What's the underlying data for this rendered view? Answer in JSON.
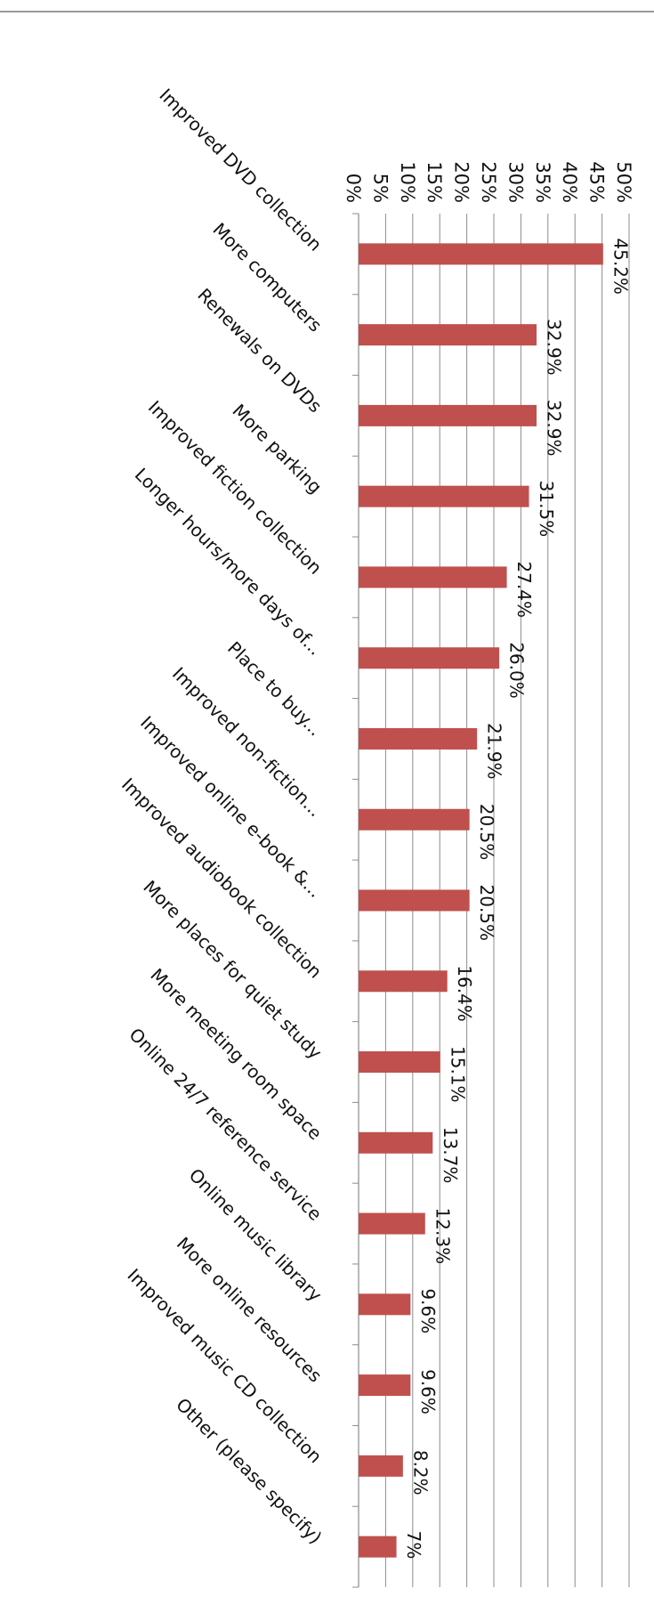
{
  "chart_data": {
    "type": "bar",
    "orientation": "horizontal",
    "categories": [
      "Improved DVD collection",
      "More computers",
      "Renewals on DVDs",
      "More parking",
      "Improved fiction collection",
      "Longer hours/more days of...",
      "Place to buy...",
      "Improved non-fiction...",
      "Improved online e-book &...",
      "Improved audiobook collection",
      "More places for quiet study",
      "More meeting room space",
      "Online 24/7 reference service",
      "Online music library",
      "More online resources",
      "Improved music CD collection",
      "Other (please specify)"
    ],
    "values": [
      45.2,
      32.9,
      32.9,
      31.5,
      27.4,
      26.0,
      21.9,
      20.5,
      20.5,
      16.4,
      15.1,
      13.7,
      12.3,
      9.6,
      9.6,
      8.2,
      7
    ],
    "data_labels": [
      "45.2%",
      "32.9%",
      "32.9%",
      "31.5%",
      "27.4%",
      "26.0%",
      "21.9%",
      "20.5%",
      "20.5%",
      "16.4%",
      "15.1%",
      "13.7%",
      "12.3%",
      "9.6%",
      "9.6%",
      "8.2%",
      "7%"
    ],
    "ticks": [
      0,
      5,
      10,
      15,
      20,
      25,
      30,
      35,
      40,
      45,
      50
    ],
    "tick_labels": [
      "0%",
      "5%",
      "10%",
      "15%",
      "20%",
      "25%",
      "30%",
      "35%",
      "40%",
      "45%",
      "50%"
    ],
    "ylim": [
      0,
      50
    ],
    "title": "",
    "xlabel": "",
    "ylabel": "",
    "grid": true,
    "legend": "none",
    "bar_color": "#c0504d",
    "grid_color": "#8c8c8c",
    "rotation": "rotated 90 degrees clockwise"
  }
}
